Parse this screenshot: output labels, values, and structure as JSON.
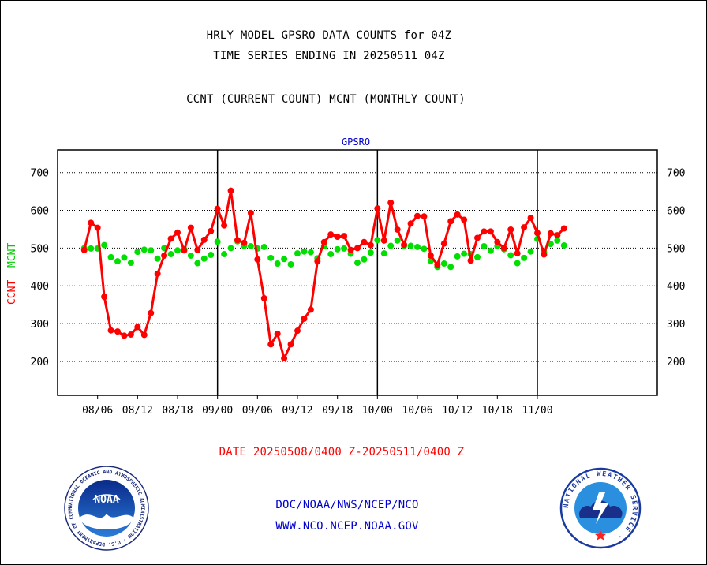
{
  "header": {
    "title_line1": "HRLY MODEL GPSRO DATA COUNTS for 04Z",
    "title_line2": "TIME SERIES ENDING IN 20250511 04Z",
    "subtitle": "CCNT (CURRENT COUNT) MCNT (MONTHLY COUNT)"
  },
  "footer": {
    "date_range": "DATE 20250508/0400 Z-20250511/0400 Z",
    "org_path": "DOC/NOAA/NWS/NCEP/NCO",
    "website": "WWW.NCO.NCEP.NOAA.GOV"
  },
  "logos": {
    "noaa_label": "NOAA",
    "noaa_ring_text": "NATIONAL OCEANIC AND ATMOSPHERIC ADMINISTRATION · U.S. DEPARTMENT OF COMMERCE ·",
    "nws_ring_text": "NATIONAL WEATHER SERVICE ·"
  },
  "colors": {
    "ccnt": "#ff0000",
    "mcnt": "#00e000",
    "title_blue": "#0000cc",
    "date_red": "#ff0000"
  },
  "chart_data": {
    "type": "line",
    "title": "GPSRO",
    "ylabel_ccnt": "CCNT",
    "ylabel_mcnt": "MCNT",
    "ylim": [
      110,
      760
    ],
    "yticks": [
      200,
      300,
      400,
      500,
      600,
      700
    ],
    "grid": true,
    "x_hours_range": [
      -4,
      86
    ],
    "x_ticks": [
      {
        "label": "08/06",
        "h": 2
      },
      {
        "label": "08/12",
        "h": 8
      },
      {
        "label": "08/18",
        "h": 14
      },
      {
        "label": "09/00",
        "h": 20
      },
      {
        "label": "09/06",
        "h": 26
      },
      {
        "label": "09/12",
        "h": 32
      },
      {
        "label": "09/18",
        "h": 38
      },
      {
        "label": "10/00",
        "h": 44
      },
      {
        "label": "10/06",
        "h": 50
      },
      {
        "label": "10/12",
        "h": 56
      },
      {
        "label": "10/18",
        "h": 62
      },
      {
        "label": "11/00",
        "h": 68
      }
    ],
    "day_boundaries": [
      20,
      44,
      68
    ],
    "series": [
      {
        "name": "CCNT",
        "color": "#ff0000",
        "values": [
          {
            "x": "2025-05-08 04Z",
            "y": 495
          },
          {
            "x": "2025-05-08 05Z",
            "y": 567
          },
          {
            "x": "2025-05-08 06Z",
            "y": 554
          },
          {
            "x": "2025-05-08 07Z",
            "y": 371
          },
          {
            "x": "2025-05-08 08Z",
            "y": 282
          },
          {
            "x": "2025-05-08 09Z",
            "y": 279
          },
          {
            "x": "2025-05-08 10Z",
            "y": 268
          },
          {
            "x": "2025-05-08 11Z",
            "y": 271
          },
          {
            "x": "2025-05-08 12Z",
            "y": 291
          },
          {
            "x": "2025-05-08 13Z",
            "y": 270
          },
          {
            "x": "2025-05-08 14Z",
            "y": 328
          },
          {
            "x": "2025-05-08 15Z",
            "y": 432
          },
          {
            "x": "2025-05-08 16Z",
            "y": 480
          },
          {
            "x": "2025-05-08 17Z",
            "y": 525
          },
          {
            "x": "2025-05-08 18Z",
            "y": 541
          },
          {
            "x": "2025-05-08 19Z",
            "y": 494
          },
          {
            "x": "2025-05-08 20Z",
            "y": 554
          },
          {
            "x": "2025-05-08 21Z",
            "y": 495
          },
          {
            "x": "2025-05-08 22Z",
            "y": 522
          },
          {
            "x": "2025-05-08 23Z",
            "y": 545
          },
          {
            "x": "2025-05-09 00Z",
            "y": 604
          },
          {
            "x": "2025-05-09 01Z",
            "y": 560
          },
          {
            "x": "2025-05-09 02Z",
            "y": 652
          },
          {
            "x": "2025-05-09 03Z",
            "y": 521
          },
          {
            "x": "2025-05-09 04Z",
            "y": 514
          },
          {
            "x": "2025-05-09 05Z",
            "y": 593
          },
          {
            "x": "2025-05-09 06Z",
            "y": 470
          },
          {
            "x": "2025-05-09 07Z",
            "y": 367
          },
          {
            "x": "2025-05-09 08Z",
            "y": 245
          },
          {
            "x": "2025-05-09 09Z",
            "y": 273
          },
          {
            "x": "2025-05-09 10Z",
            "y": 208
          },
          {
            "x": "2025-05-09 11Z",
            "y": 245
          },
          {
            "x": "2025-05-09 12Z",
            "y": 281
          },
          {
            "x": "2025-05-09 13Z",
            "y": 313
          },
          {
            "x": "2025-05-09 14Z",
            "y": 337
          },
          {
            "x": "2025-05-09 15Z",
            "y": 465
          },
          {
            "x": "2025-05-09 16Z",
            "y": 516
          },
          {
            "x": "2025-05-09 17Z",
            "y": 536
          },
          {
            "x": "2025-05-09 18Z",
            "y": 530
          },
          {
            "x": "2025-05-09 19Z",
            "y": 532
          },
          {
            "x": "2025-05-09 20Z",
            "y": 495
          },
          {
            "x": "2025-05-09 21Z",
            "y": 500
          },
          {
            "x": "2025-05-09 22Z",
            "y": 516
          },
          {
            "x": "2025-05-09 23Z",
            "y": 508
          },
          {
            "x": "2025-05-10 00Z",
            "y": 605
          },
          {
            "x": "2025-05-10 01Z",
            "y": 520
          },
          {
            "x": "2025-05-10 02Z",
            "y": 620
          },
          {
            "x": "2025-05-10 03Z",
            "y": 549
          },
          {
            "x": "2025-05-10 04Z",
            "y": 509
          },
          {
            "x": "2025-05-10 05Z",
            "y": 565
          },
          {
            "x": "2025-05-10 06Z",
            "y": 585
          },
          {
            "x": "2025-05-10 07Z",
            "y": 584
          },
          {
            "x": "2025-05-10 08Z",
            "y": 480
          },
          {
            "x": "2025-05-10 09Z",
            "y": 456
          },
          {
            "x": "2025-05-10 10Z",
            "y": 512
          },
          {
            "x": "2025-05-10 11Z",
            "y": 571
          },
          {
            "x": "2025-05-10 12Z",
            "y": 589
          },
          {
            "x": "2025-05-10 13Z",
            "y": 575
          },
          {
            "x": "2025-05-10 14Z",
            "y": 467
          },
          {
            "x": "2025-05-10 15Z",
            "y": 527
          },
          {
            "x": "2025-05-10 16Z",
            "y": 544
          },
          {
            "x": "2025-05-10 17Z",
            "y": 544
          },
          {
            "x": "2025-05-10 18Z",
            "y": 516
          },
          {
            "x": "2025-05-10 19Z",
            "y": 500
          },
          {
            "x": "2025-05-10 20Z",
            "y": 549
          },
          {
            "x": "2025-05-10 21Z",
            "y": 486
          },
          {
            "x": "2025-05-10 22Z",
            "y": 555
          },
          {
            "x": "2025-05-10 23Z",
            "y": 580
          },
          {
            "x": "2025-05-11 00Z",
            "y": 540
          },
          {
            "x": "2025-05-11 01Z",
            "y": 483
          },
          {
            "x": "2025-05-11 02Z",
            "y": 539
          },
          {
            "x": "2025-05-11 03Z",
            "y": 534
          },
          {
            "x": "2025-05-11 04Z",
            "y": 552
          }
        ]
      },
      {
        "name": "MCNT",
        "color": "#00e000",
        "values": [
          {
            "x": "2025-05-08 04Z",
            "y": 500
          },
          {
            "x": "2025-05-08 05Z",
            "y": 499
          },
          {
            "x": "2025-05-08 06Z",
            "y": 499
          },
          {
            "x": "2025-05-08 07Z",
            "y": 508
          },
          {
            "x": "2025-05-08 08Z",
            "y": 476
          },
          {
            "x": "2025-05-08 09Z",
            "y": 465
          },
          {
            "x": "2025-05-08 10Z",
            "y": 475
          },
          {
            "x": "2025-05-08 11Z",
            "y": 461
          },
          {
            "x": "2025-05-08 12Z",
            "y": 490
          },
          {
            "x": "2025-05-08 13Z",
            "y": 496
          },
          {
            "x": "2025-05-08 14Z",
            "y": 494
          },
          {
            "x": "2025-05-08 15Z",
            "y": 472
          },
          {
            "x": "2025-05-08 16Z",
            "y": 500
          },
          {
            "x": "2025-05-08 17Z",
            "y": 484
          },
          {
            "x": "2025-05-08 18Z",
            "y": 494
          },
          {
            "x": "2025-05-08 19Z",
            "y": 497
          },
          {
            "x": "2025-05-08 20Z",
            "y": 480
          },
          {
            "x": "2025-05-08 21Z",
            "y": 460
          },
          {
            "x": "2025-05-08 22Z",
            "y": 472
          },
          {
            "x": "2025-05-08 23Z",
            "y": 482
          },
          {
            "x": "2025-05-09 00Z",
            "y": 517
          },
          {
            "x": "2025-05-09 01Z",
            "y": 484
          },
          {
            "x": "2025-05-09 02Z",
            "y": 500
          },
          {
            "x": "2025-05-09 03Z",
            "y": 518
          },
          {
            "x": "2025-05-09 04Z",
            "y": 506
          },
          {
            "x": "2025-05-09 05Z",
            "y": 505
          },
          {
            "x": "2025-05-09 06Z",
            "y": 499
          },
          {
            "x": "2025-05-09 07Z",
            "y": 503
          },
          {
            "x": "2025-05-09 08Z",
            "y": 474
          },
          {
            "x": "2025-05-09 09Z",
            "y": 459
          },
          {
            "x": "2025-05-09 10Z",
            "y": 471
          },
          {
            "x": "2025-05-09 11Z",
            "y": 457
          },
          {
            "x": "2025-05-09 12Z",
            "y": 486
          },
          {
            "x": "2025-05-09 13Z",
            "y": 491
          },
          {
            "x": "2025-05-09 14Z",
            "y": 489
          },
          {
            "x": "2025-05-09 15Z",
            "y": 473
          },
          {
            "x": "2025-05-09 16Z",
            "y": 505
          },
          {
            "x": "2025-05-09 17Z",
            "y": 484
          },
          {
            "x": "2025-05-09 18Z",
            "y": 497
          },
          {
            "x": "2025-05-09 19Z",
            "y": 499
          },
          {
            "x": "2025-05-09 20Z",
            "y": 485
          },
          {
            "x": "2025-05-09 21Z",
            "y": 461
          },
          {
            "x": "2025-05-09 22Z",
            "y": 470
          },
          {
            "x": "2025-05-09 23Z",
            "y": 488
          },
          {
            "x": "2025-05-10 00Z",
            "y": 521
          },
          {
            "x": "2025-05-10 01Z",
            "y": 486
          },
          {
            "x": "2025-05-10 02Z",
            "y": 506
          },
          {
            "x": "2025-05-10 03Z",
            "y": 520
          },
          {
            "x": "2025-05-10 04Z",
            "y": 506
          },
          {
            "x": "2025-05-10 05Z",
            "y": 506
          },
          {
            "x": "2025-05-10 06Z",
            "y": 503
          },
          {
            "x": "2025-05-10 07Z",
            "y": 498
          },
          {
            "x": "2025-05-10 08Z",
            "y": 466
          },
          {
            "x": "2025-05-10 09Z",
            "y": 450
          },
          {
            "x": "2025-05-10 10Z",
            "y": 459
          },
          {
            "x": "2025-05-10 11Z",
            "y": 450
          },
          {
            "x": "2025-05-10 12Z",
            "y": 478
          },
          {
            "x": "2025-05-10 13Z",
            "y": 485
          },
          {
            "x": "2025-05-10 14Z",
            "y": 484
          },
          {
            "x": "2025-05-10 15Z",
            "y": 476
          },
          {
            "x": "2025-05-10 16Z",
            "y": 505
          },
          {
            "x": "2025-05-10 17Z",
            "y": 493
          },
          {
            "x": "2025-05-10 18Z",
            "y": 505
          },
          {
            "x": "2025-05-10 19Z",
            "y": 497
          },
          {
            "x": "2025-05-10 20Z",
            "y": 481
          },
          {
            "x": "2025-05-10 21Z",
            "y": 460
          },
          {
            "x": "2025-05-10 22Z",
            "y": 474
          },
          {
            "x": "2025-05-10 23Z",
            "y": 491
          },
          {
            "x": "2025-05-11 00Z",
            "y": 524
          },
          {
            "x": "2025-05-11 01Z",
            "y": 490
          },
          {
            "x": "2025-05-11 02Z",
            "y": 511
          },
          {
            "x": "2025-05-11 03Z",
            "y": 520
          },
          {
            "x": "2025-05-11 04Z",
            "y": 507
          }
        ]
      }
    ]
  }
}
